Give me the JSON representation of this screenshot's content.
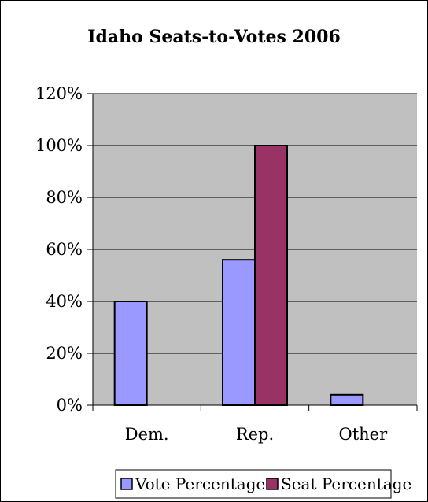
{
  "chart_data": {
    "type": "bar",
    "title": "Idaho Seats-to-Votes 2006",
    "categories": [
      "Dem.",
      "Rep.",
      "Other"
    ],
    "series": [
      {
        "name": "Vote Percentage",
        "values": [
          40,
          56,
          4
        ],
        "color": "#9999ff"
      },
      {
        "name": "Seat Percentage",
        "values": [
          0,
          100,
          0
        ],
        "color": "#993366"
      }
    ],
    "ylim": [
      0,
      120
    ],
    "yticks": [
      0,
      20,
      40,
      60,
      80,
      100,
      120
    ],
    "ytick_labels": [
      "0%",
      "20%",
      "40%",
      "60%",
      "80%",
      "100%",
      "120%"
    ],
    "grid": true,
    "legend_position": "bottom",
    "plot_background": "#c0c0c0"
  }
}
